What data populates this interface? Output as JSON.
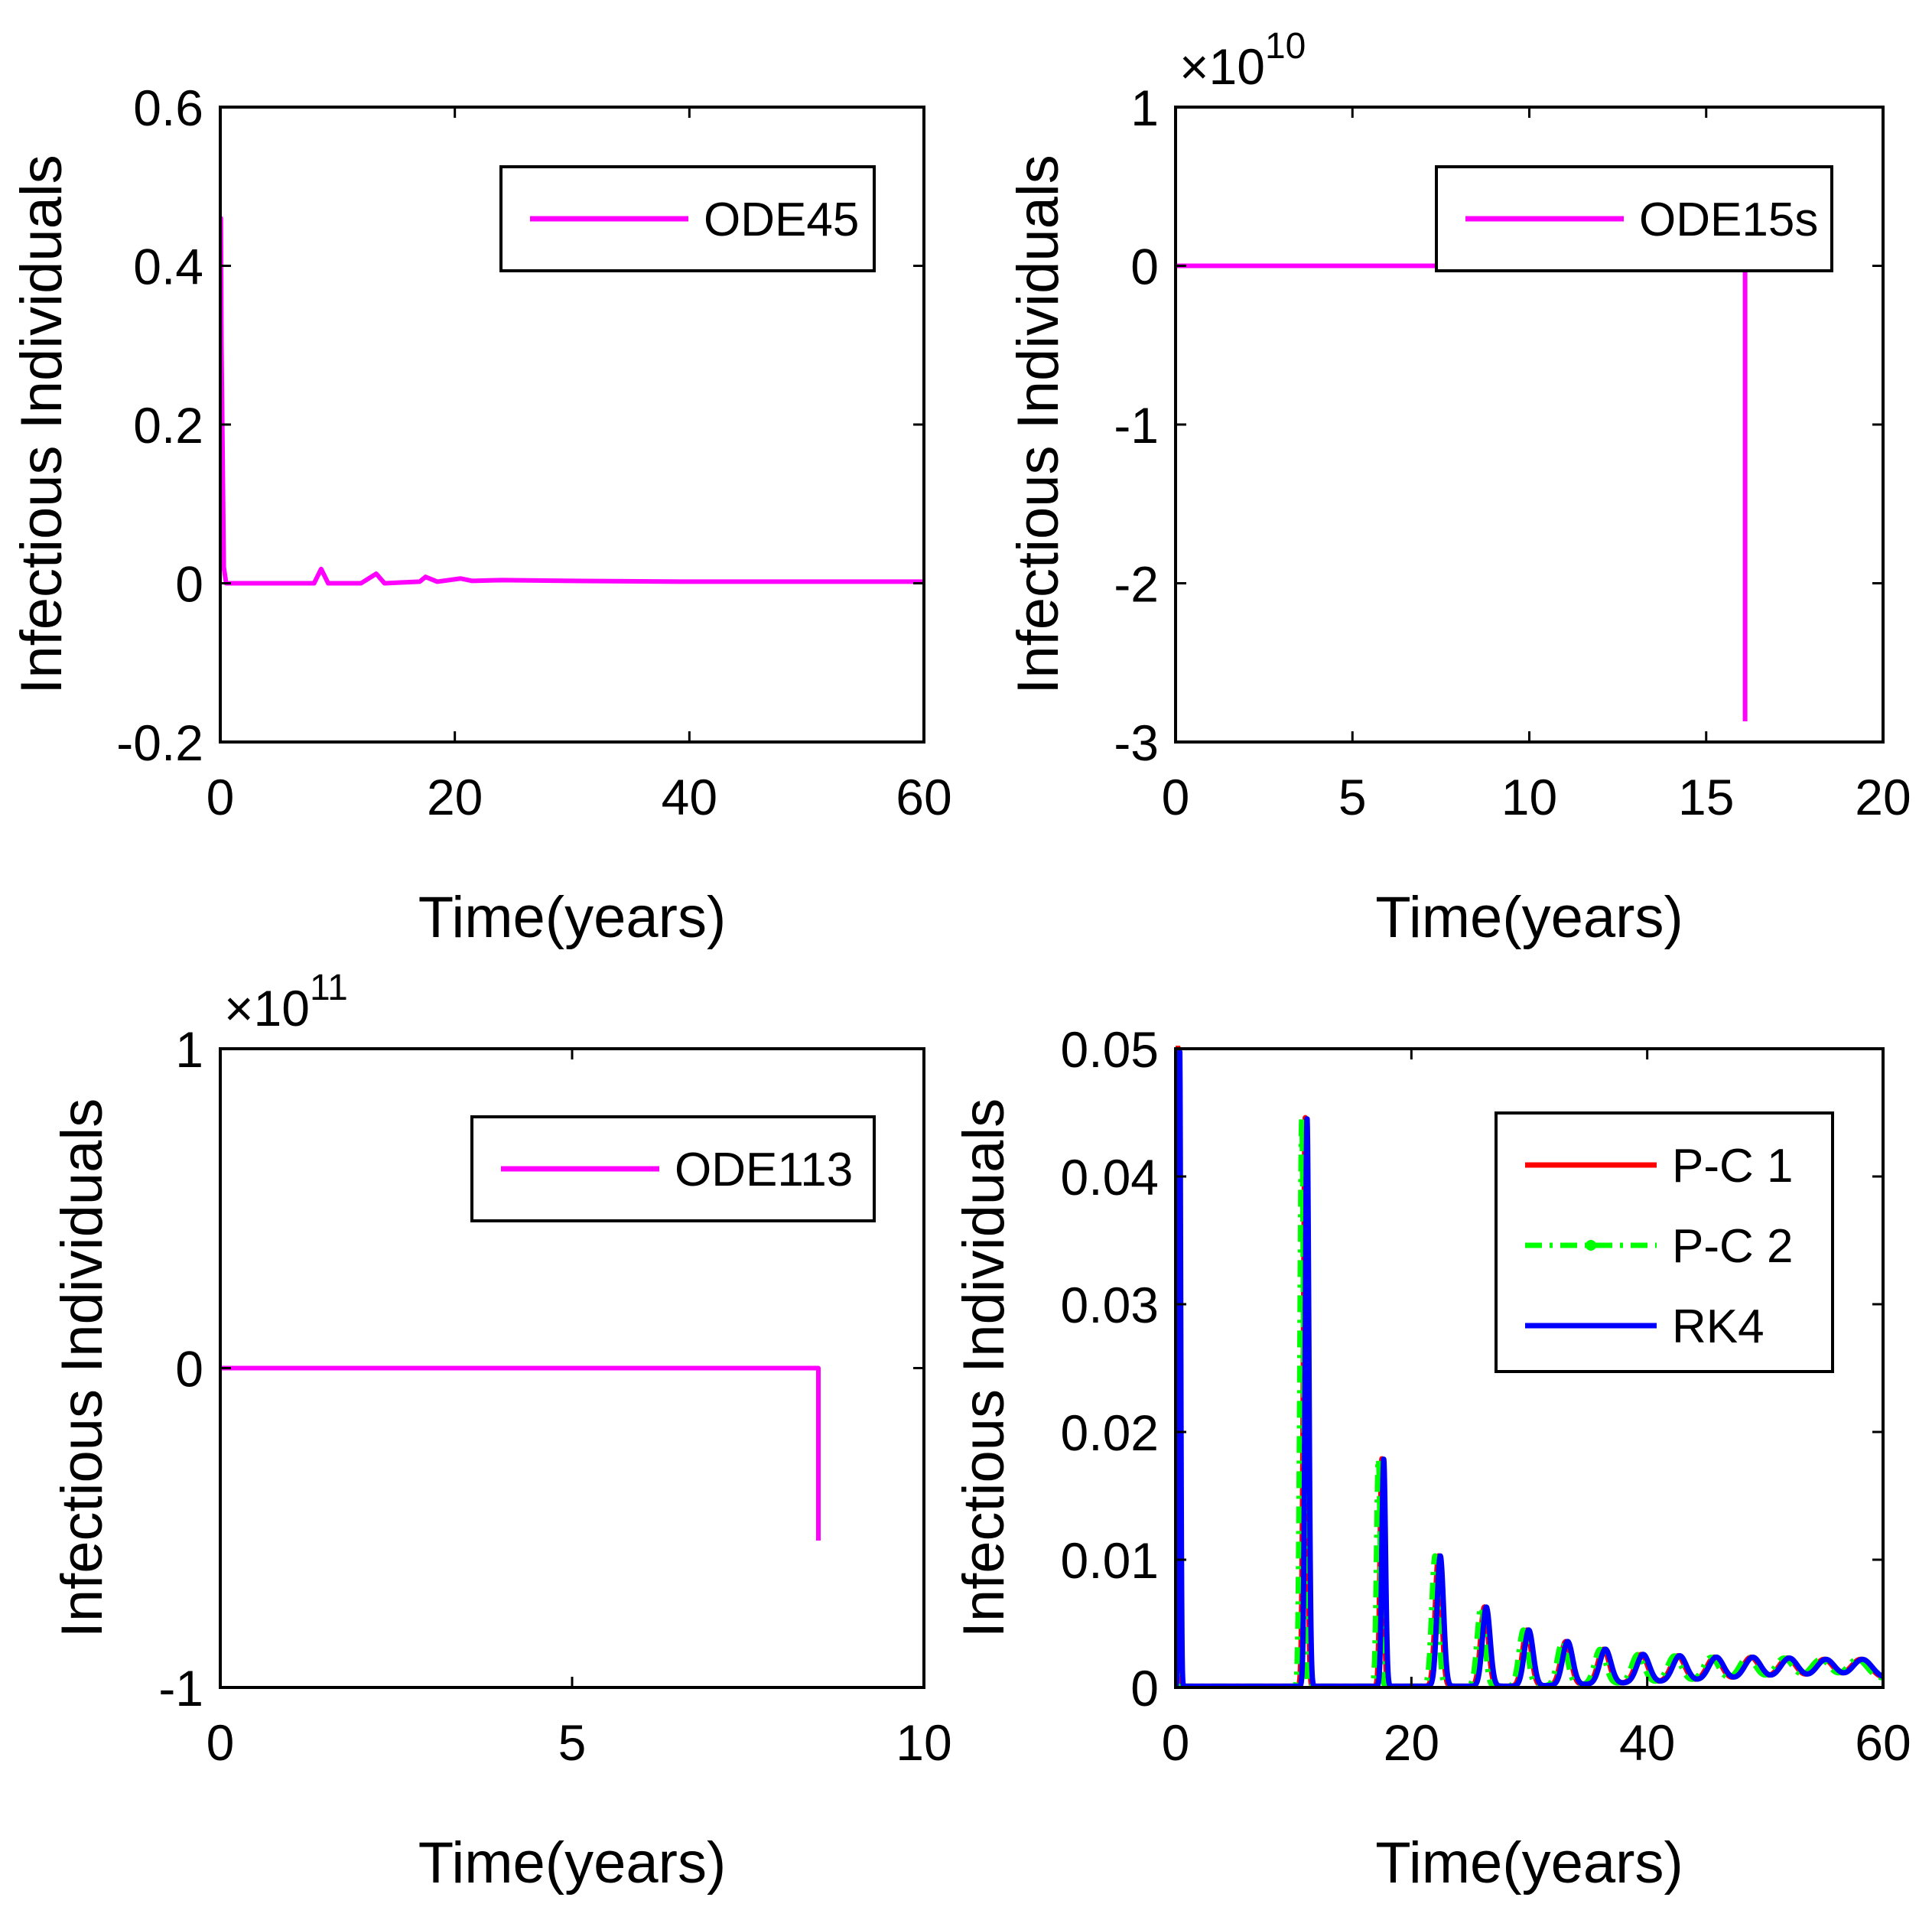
{
  "chart_data": [
    {
      "type": "line",
      "xlabel": "Time(years)",
      "ylabel": "Infectious Individuals",
      "xlim": [
        0,
        60
      ],
      "ylim": [
        -0.2,
        0.6
      ],
      "xticks": [
        0,
        20,
        40,
        60
      ],
      "xtick_labels": [
        "0",
        "20",
        "40",
        "60"
      ],
      "yticks": [
        -0.2,
        0,
        0.2,
        0.4,
        0.6
      ],
      "ytick_labels": [
        "-0.2",
        "0",
        "0.2",
        "0.4",
        "0.6"
      ],
      "exponent": null,
      "legend_position": "top-right",
      "series": [
        {
          "name": "ODE45",
          "color": "#ff00ff",
          "style": "solid",
          "x": [
            0,
            0.05,
            0.1,
            0.3,
            0.5,
            2,
            5,
            8,
            8.6,
            9.2,
            12,
            13.3,
            14,
            17,
            17.5,
            18.5,
            20.5,
            21.5,
            24,
            30,
            40,
            60
          ],
          "y": [
            0.05,
            0.46,
            0.3,
            0.02,
            0.0,
            0.0,
            0.0,
            0.0,
            0.018,
            0.0,
            0.0,
            0.012,
            0.0,
            0.002,
            0.008,
            0.002,
            0.006,
            0.003,
            0.004,
            0.003,
            0.002,
            0.002
          ]
        }
      ]
    },
    {
      "type": "line",
      "xlabel": "Time(years)",
      "ylabel": "Infectious Individuals",
      "xlim": [
        0,
        20
      ],
      "ylim": [
        -3,
        1
      ],
      "xticks": [
        0,
        5,
        10,
        15,
        20
      ],
      "xtick_labels": [
        "0",
        "5",
        "10",
        "15",
        "20"
      ],
      "yticks": [
        -3,
        -2,
        -1,
        0,
        1
      ],
      "ytick_labels": [
        "-3",
        "-2",
        "-1",
        "0",
        "1"
      ],
      "exponent": {
        "base": "×10",
        "power": "10"
      },
      "legend_position": "top-right",
      "series": [
        {
          "name": "ODE15s",
          "color": "#ff00ff",
          "style": "solid",
          "x": [
            0,
            16.1,
            16.1
          ],
          "y": [
            0,
            0,
            -2.87
          ]
        }
      ]
    },
    {
      "type": "line",
      "xlabel": "Time(years)",
      "ylabel": "Infectious Individuals",
      "xlim": [
        0,
        10
      ],
      "ylim": [
        -1,
        1
      ],
      "xticks": [
        0,
        5,
        10
      ],
      "xtick_labels": [
        "0",
        "5",
        "10"
      ],
      "yticks": [
        -1,
        0,
        1
      ],
      "ytick_labels": [
        "-1",
        "0",
        "1"
      ],
      "exponent": {
        "base": "×10",
        "power": "11"
      },
      "legend_position": "top-right",
      "series": [
        {
          "name": "ODE113",
          "color": "#ff00ff",
          "style": "solid",
          "x": [
            0,
            8.5,
            8.5
          ],
          "y": [
            0,
            0,
            -0.54
          ]
        }
      ]
    },
    {
      "type": "line",
      "xlabel": "Time(years)",
      "ylabel": "Infectious Individuals",
      "xlim": [
        0,
        60
      ],
      "ylim": [
        0,
        0.05
      ],
      "xticks": [
        0,
        20,
        40,
        60
      ],
      "xtick_labels": [
        "0",
        "20",
        "40",
        "60"
      ],
      "yticks": [
        0,
        0.01,
        0.02,
        0.03,
        0.04,
        0.05
      ],
      "ytick_labels": [
        "0",
        "0.01",
        "0.02",
        "0.03",
        "0.04",
        "0.05"
      ],
      "exponent": null,
      "legend_position": "top-right",
      "peaks": [
        {
          "t": 0.2,
          "h": 0.05
        },
        {
          "t": 11.0,
          "h": 0.0445
        },
        {
          "t": 17.5,
          "h": 0.0178
        },
        {
          "t": 22.3,
          "h": 0.0102
        },
        {
          "t": 26.2,
          "h": 0.0062
        },
        {
          "t": 29.8,
          "h": 0.0044
        },
        {
          "t": 33.1,
          "h": 0.0034
        },
        {
          "t": 36.3,
          "h": 0.0027
        },
        {
          "t": 39.5,
          "h": 0.0022
        },
        {
          "t": 42.6,
          "h": 0.002
        },
        {
          "t": 45.7,
          "h": 0.0018
        },
        {
          "t": 48.8,
          "h": 0.0017
        },
        {
          "t": 51.9,
          "h": 0.0016
        },
        {
          "t": 55.0,
          "h": 0.0015
        },
        {
          "t": 58.1,
          "h": 0.0015
        }
      ],
      "baseline": 0.0001,
      "equilibrium": 0.0013,
      "series": [
        {
          "name": "P-C 1",
          "color": "#ff0000",
          "style": "solid",
          "shift": 0.0
        },
        {
          "name": "P-C 2",
          "color": "#00ff00",
          "style": "dashdot",
          "shift": -0.3
        },
        {
          "name": "RK4",
          "color": "#0000ff",
          "style": "solid",
          "shift": 0.15
        }
      ]
    }
  ]
}
